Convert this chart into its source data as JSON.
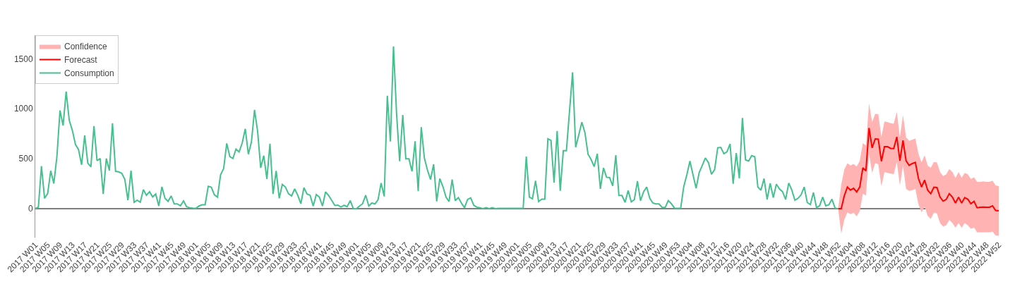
{
  "chart_data": {
    "type": "line",
    "categories": [
      "2017 W01",
      null,
      null,
      null,
      "2017 W05",
      null,
      null,
      null,
      "2017 W09",
      null,
      null,
      null,
      "2017 W13",
      null,
      null,
      null,
      "2017 W17",
      null,
      null,
      null,
      "2017 W21",
      null,
      null,
      null,
      "2017 W25",
      null,
      null,
      null,
      "2017 W29",
      null,
      null,
      null,
      "2017 W33",
      null,
      null,
      null,
      "2017 W37",
      null,
      null,
      null,
      "2017 W41",
      null,
      null,
      null,
      "2017 W45",
      null,
      null,
      null,
      "2017 W49",
      null,
      null,
      null,
      "2018 W01",
      null,
      null,
      null,
      "2018 W05",
      null,
      null,
      null,
      "2018 W09",
      null,
      null,
      null,
      "2018 W13",
      null,
      null,
      null,
      "2018 W17",
      null,
      null,
      null,
      "2018 W21",
      null,
      null,
      null,
      "2018 W25",
      null,
      null,
      null,
      "2018 W29",
      null,
      null,
      null,
      "2018 W33",
      null,
      null,
      null,
      "2018 W37",
      null,
      null,
      null,
      "2018 W41",
      null,
      null,
      null,
      "2018 W45",
      null,
      null,
      null,
      "2018 W49",
      null,
      null,
      null,
      "2019 W01",
      null,
      null,
      null,
      "2019 W05",
      null,
      null,
      null,
      "2019 W09",
      null,
      null,
      null,
      "2019 W13",
      null,
      null,
      null,
      "2019 W17",
      null,
      null,
      null,
      "2019 W21",
      null,
      null,
      null,
      "2019 W25",
      null,
      null,
      null,
      "2019 W29",
      null,
      null,
      null,
      "2019 W33",
      null,
      null,
      null,
      "2019 W37",
      null,
      null,
      null,
      "2019 W41",
      null,
      null,
      null,
      "2019 W45",
      null,
      null,
      null,
      "2019 W49",
      null,
      null,
      null,
      "2020 W01",
      null,
      null,
      null,
      "2020 W05",
      null,
      null,
      null,
      "2020 W09",
      null,
      null,
      null,
      "2020 W13",
      null,
      null,
      null,
      "2020 W17",
      null,
      null,
      null,
      "2020 W21",
      null,
      null,
      null,
      "2020 W25",
      null,
      null,
      null,
      "2020 W29",
      null,
      null,
      null,
      "2020 W33",
      null,
      null,
      null,
      "2020 W37",
      null,
      null,
      null,
      "2020 W41",
      null,
      null,
      null,
      "2020 W45",
      null,
      null,
      null,
      "2020 W49",
      null,
      null,
      null,
      "2020 W53",
      null,
      null,
      null,
      "2021 W04",
      null,
      null,
      null,
      "2021 W08",
      null,
      null,
      null,
      "2021 W12",
      null,
      null,
      null,
      "2021 W16",
      null,
      null,
      null,
      "2021 W20",
      null,
      null,
      null,
      "2021 W24",
      null,
      null,
      null,
      "2021 W28",
      null,
      null,
      null,
      "2021 W32",
      null,
      null,
      null,
      "2021 W36",
      null,
      null,
      null,
      "2021 W40",
      null,
      null,
      null,
      "2021 W44",
      null,
      null,
      null,
      "2021 W48",
      null,
      null,
      null,
      "2021 W52",
      null,
      null,
      null,
      "2022 W04",
      null,
      null,
      null,
      "2022 W08",
      null,
      null,
      null,
      "2022 W12",
      null,
      null,
      null,
      "2022 W16",
      null,
      null,
      null,
      "2022 W20",
      null,
      null,
      null,
      "2022 W24",
      null,
      null,
      null,
      "2022 W28",
      null,
      null,
      null,
      "2022 W32",
      null,
      null,
      null,
      "2022 W36",
      null,
      null,
      null,
      "2022 W40",
      null,
      null,
      null,
      "2022 W44",
      null,
      null,
      null,
      "2022 W48",
      null,
      null,
      null,
      "2022 W52"
    ],
    "series": [
      {
        "name": "Confidence",
        "type": "area",
        "color": "#ffb3b3",
        "values": [
          null,
          null,
          null,
          null,
          null,
          null,
          null,
          null,
          null,
          null,
          null,
          null,
          null,
          null,
          null,
          null,
          null,
          null,
          null,
          null,
          null,
          null,
          null,
          null,
          null,
          null,
          null,
          null,
          null,
          null,
          null,
          null,
          null,
          null,
          null,
          null,
          null,
          null,
          null,
          null,
          null,
          null,
          null,
          null,
          null,
          null,
          null,
          null,
          null,
          null,
          null,
          null,
          null,
          null,
          null,
          null,
          null,
          null,
          null,
          null,
          null,
          null,
          null,
          null,
          null,
          null,
          null,
          null,
          null,
          null,
          null,
          null,
          null,
          null,
          null,
          null,
          null,
          null,
          null,
          null,
          null,
          null,
          null,
          null,
          null,
          null,
          null,
          null,
          null,
          null,
          null,
          null,
          null,
          null,
          null,
          null,
          null,
          null,
          null,
          null,
          null,
          null,
          null,
          null,
          null,
          null,
          null,
          null,
          null,
          null,
          null,
          null,
          null,
          null,
          null,
          null,
          null,
          null,
          null,
          null,
          null,
          null,
          null,
          null,
          null,
          null,
          null,
          null,
          null,
          null,
          null,
          null,
          null,
          null,
          null,
          null,
          null,
          null,
          null,
          null,
          null,
          null,
          null,
          null,
          null,
          null,
          null,
          null,
          null,
          null,
          null,
          null,
          null,
          null,
          null,
          null,
          null,
          null,
          null,
          null,
          null,
          null,
          null,
          null,
          null,
          null,
          null,
          null,
          null,
          null,
          null,
          null,
          null,
          null,
          null,
          null,
          null,
          null,
          null,
          null,
          null,
          null,
          null,
          null,
          null,
          null,
          null,
          null,
          null,
          null,
          null,
          null,
          null,
          null,
          null,
          null,
          null,
          null,
          null,
          null,
          null,
          null,
          null,
          null,
          null,
          null,
          null,
          null,
          null,
          null,
          null,
          null,
          null,
          null,
          null,
          null,
          null,
          null,
          null,
          null,
          null,
          null,
          null,
          null,
          null,
          null,
          null,
          null,
          null,
          null,
          null,
          null,
          null,
          null,
          null,
          null,
          null,
          null,
          null,
          null,
          null,
          null,
          null,
          null,
          null,
          null,
          null,
          null,
          null,
          null,
          null,
          null,
          null,
          null,
          null,
          null,
          null,
          null,
          null,
          null,
          null,
          null,
          null,
          null,
          null,
          null,
          null,
          null,
          null,
          null,
          null,
          null,
          null,
          null,
          null,
          null,
          null,
          null,
          null,
          null,
          null,
          null,
          null,
          null,
          null,
          null,
          null,
          null,
          null,
          null,
          null,
          null,
          null,
          null,
          null,
          null,
          null,
          null,
          null,
          null,
          null,
          null,
          null,
          null,
          null,
          null,
          null,
          null,
          null,
          null,
          null,
          null,
          null
        ],
        "lower": [
          null,
          null,
          null,
          null,
          null,
          null,
          null,
          null,
          null,
          null,
          null,
          null,
          null,
          null,
          null,
          null,
          null,
          null,
          null,
          null,
          null,
          null,
          null,
          null,
          null,
          null,
          null,
          null,
          null,
          null,
          null,
          null,
          null,
          null,
          null,
          null,
          null,
          null,
          null,
          null,
          null,
          null,
          null,
          null,
          null,
          null,
          null,
          null,
          null,
          null,
          null,
          null,
          null,
          null,
          null,
          null,
          null,
          null,
          null,
          null,
          null,
          null,
          null,
          null,
          null,
          null,
          null,
          null,
          null,
          null,
          null,
          null,
          null,
          null,
          null,
          null,
          null,
          null,
          null,
          null,
          null,
          null,
          null,
          null,
          null,
          null,
          null,
          null,
          null,
          null,
          null,
          null,
          null,
          null,
          null,
          null,
          null,
          null,
          null,
          null,
          null,
          null,
          null,
          null,
          null,
          null,
          null,
          null,
          null,
          null,
          null,
          null,
          null,
          null,
          null,
          null,
          null,
          null,
          null,
          null,
          null,
          null,
          null,
          null,
          null,
          null,
          null,
          null,
          null,
          null,
          null,
          null,
          null,
          null,
          null,
          null,
          null,
          null,
          null,
          null,
          null,
          null,
          null,
          null,
          null,
          null,
          null,
          null,
          null,
          null,
          null,
          null,
          null,
          null,
          null,
          null,
          null,
          null,
          null,
          null,
          null,
          null,
          null,
          null,
          null,
          null,
          null,
          null,
          null,
          null,
          null,
          null,
          null,
          null,
          null,
          null,
          null,
          null,
          null,
          null,
          null,
          null,
          null,
          null,
          null,
          null,
          null,
          null,
          null,
          null,
          null,
          null,
          null,
          null,
          null,
          null,
          null,
          null,
          null,
          null,
          null,
          null,
          null,
          null,
          null,
          null,
          null,
          null,
          null,
          null,
          null,
          null,
          null,
          null,
          null,
          null,
          null,
          null,
          null,
          null,
          null,
          null,
          null,
          null,
          null,
          null,
          null,
          null,
          null,
          null,
          null,
          null,
          null,
          null,
          null,
          null,
          null,
          null,
          null,
          null,
          null,
          null,
          null,
          null,
          null,
          null,
          null,
          null,
          null,
          null,
          null,
          null,
          null,
          null,
          null,
          null,
          null,
          null,
          null,
          null,
          0,
          -249,
          -110,
          -38,
          -56,
          -42,
          -77,
          -26,
          150,
          131,
          549,
          357,
          455,
          444,
          225,
          366,
          357,
          350,
          345,
          467,
          232,
          432,
          197,
          178,
          185,
          197,
          45,
          -38,
          21,
          -73,
          -103,
          -42,
          -49,
          -143,
          -178,
          -167,
          -113,
          -143,
          -192,
          -143,
          -192,
          -143,
          -167,
          -202,
          -190,
          -237,
          -237,
          -237,
          -237,
          -237,
          -230,
          -268,
          -272
        ],
        "upper": [
          null,
          null,
          null,
          null,
          null,
          null,
          null,
          null,
          null,
          null,
          null,
          null,
          null,
          null,
          null,
          null,
          null,
          null,
          null,
          null,
          null,
          null,
          null,
          null,
          null,
          null,
          null,
          null,
          null,
          null,
          null,
          null,
          null,
          null,
          null,
          null,
          null,
          null,
          null,
          null,
          null,
          null,
          null,
          null,
          null,
          null,
          null,
          null,
          null,
          null,
          null,
          null,
          null,
          null,
          null,
          null,
          null,
          null,
          null,
          null,
          null,
          null,
          null,
          null,
          null,
          null,
          null,
          null,
          null,
          null,
          null,
          null,
          null,
          null,
          null,
          null,
          null,
          null,
          null,
          null,
          null,
          null,
          null,
          null,
          null,
          null,
          null,
          null,
          null,
          null,
          null,
          null,
          null,
          null,
          null,
          null,
          null,
          null,
          null,
          null,
          null,
          null,
          null,
          null,
          null,
          null,
          null,
          null,
          null,
          null,
          null,
          null,
          null,
          null,
          null,
          null,
          null,
          null,
          null,
          null,
          null,
          null,
          null,
          null,
          null,
          null,
          null,
          null,
          null,
          null,
          null,
          null,
          null,
          null,
          null,
          null,
          null,
          null,
          null,
          null,
          null,
          null,
          null,
          null,
          null,
          null,
          null,
          null,
          null,
          null,
          null,
          null,
          null,
          null,
          null,
          null,
          null,
          null,
          null,
          null,
          null,
          null,
          null,
          null,
          null,
          null,
          null,
          null,
          null,
          null,
          null,
          null,
          null,
          null,
          null,
          null,
          null,
          null,
          null,
          null,
          null,
          null,
          null,
          null,
          null,
          null,
          null,
          null,
          null,
          null,
          null,
          null,
          null,
          null,
          null,
          null,
          null,
          null,
          null,
          null,
          null,
          null,
          null,
          null,
          null,
          null,
          null,
          null,
          null,
          null,
          null,
          null,
          null,
          null,
          null,
          null,
          null,
          null,
          null,
          null,
          null,
          null,
          null,
          null,
          null,
          null,
          null,
          null,
          null,
          null,
          null,
          null,
          null,
          null,
          null,
          null,
          null,
          null,
          null,
          null,
          null,
          null,
          null,
          null,
          null,
          null,
          null,
          null,
          null,
          null,
          null,
          null,
          null,
          null,
          null,
          null,
          null,
          null,
          null,
          null,
          0,
          240,
          390,
          455,
          432,
          448,
          420,
          479,
          655,
          631,
          1054,
          866,
          948,
          944,
          718,
          873,
          866,
          854,
          850,
          967,
          713,
          936,
          713,
          678,
          690,
          702,
          549,
          462,
          533,
          432,
          408,
          467,
          462,
          366,
          326,
          343,
          397,
          366,
          307,
          366,
          310,
          357,
          343,
          296,
          314,
          268,
          268,
          272,
          268,
          268,
          279,
          232,
          225
        ]
      },
      {
        "name": "Forecast",
        "color": "#ff0000",
        "values": [
          null,
          null,
          null,
          null,
          null,
          null,
          null,
          null,
          null,
          null,
          null,
          null,
          null,
          null,
          null,
          null,
          null,
          null,
          null,
          null,
          null,
          null,
          null,
          null,
          null,
          null,
          null,
          null,
          null,
          null,
          null,
          null,
          null,
          null,
          null,
          null,
          null,
          null,
          null,
          null,
          null,
          null,
          null,
          null,
          null,
          null,
          null,
          null,
          null,
          null,
          null,
          null,
          null,
          null,
          null,
          null,
          null,
          null,
          null,
          null,
          null,
          null,
          null,
          null,
          null,
          null,
          null,
          null,
          null,
          null,
          null,
          null,
          null,
          null,
          null,
          null,
          null,
          null,
          null,
          null,
          null,
          null,
          null,
          null,
          null,
          null,
          null,
          null,
          null,
          null,
          null,
          null,
          null,
          null,
          null,
          null,
          null,
          null,
          null,
          null,
          null,
          null,
          null,
          null,
          null,
          null,
          null,
          null,
          null,
          null,
          null,
          null,
          null,
          null,
          null,
          null,
          null,
          null,
          null,
          null,
          null,
          null,
          null,
          null,
          null,
          null,
          null,
          null,
          null,
          null,
          null,
          null,
          null,
          null,
          null,
          null,
          null,
          null,
          null,
          null,
          null,
          null,
          null,
          null,
          null,
          null,
          null,
          null,
          null,
          null,
          null,
          null,
          null,
          null,
          null,
          null,
          null,
          null,
          null,
          null,
          null,
          null,
          null,
          null,
          null,
          null,
          null,
          null,
          null,
          null,
          null,
          null,
          null,
          null,
          null,
          null,
          null,
          null,
          null,
          null,
          null,
          null,
          null,
          null,
          null,
          null,
          null,
          null,
          null,
          null,
          null,
          null,
          null,
          null,
          null,
          null,
          null,
          null,
          null,
          null,
          null,
          null,
          null,
          null,
          null,
          null,
          null,
          null,
          null,
          null,
          null,
          null,
          null,
          null,
          null,
          null,
          null,
          null,
          null,
          null,
          null,
          null,
          null,
          null,
          null,
          null,
          null,
          null,
          null,
          null,
          null,
          null,
          null,
          null,
          null,
          null,
          null,
          null,
          null,
          null,
          null,
          null,
          null,
          null,
          null,
          null,
          null,
          null,
          null,
          null,
          null,
          null,
          null,
          null,
          null,
          null,
          null,
          null,
          null,
          null,
          0,
          0,
          130,
          216,
          185,
          204,
          167,
          216,
          408,
          378,
          807,
          608,
          697,
          695,
          474,
          620,
          620,
          603,
          601,
          718,
          479,
          683,
          479,
          432,
          451,
          462,
          303,
          216,
          286,
          185,
          150,
          214,
          211,
          115,
          75,
          92,
          150,
          115,
          56,
          115,
          56,
          110,
          94,
          49,
          73,
          9,
          14,
          16,
          14,
          14,
          28,
          -19,
          -21
        ]
      },
      {
        "name": "Consumption",
        "color": "#47c08f",
        "values": [
          0,
          15,
          425,
          103,
          150,
          378,
          251,
          520,
          983,
          831,
          1171,
          882,
          784,
          643,
          591,
          439,
          732,
          455,
          418,
          826,
          479,
          502,
          146,
          502,
          380,
          854,
          373,
          368,
          354,
          291,
          84,
          380,
          63,
          84,
          63,
          190,
          134,
          169,
          117,
          146,
          26,
          218,
          103,
          73,
          127,
          47,
          47,
          28,
          77,
          19,
          9,
          5,
          2,
          26,
          38,
          38,
          223,
          214,
          138,
          115,
          338,
          401,
          652,
          521,
          502,
          596,
          568,
          655,
          798,
          545,
          667,
          988,
          772,
          408,
          530,
          296,
          650,
          146,
          378,
          103,
          242,
          216,
          148,
          127,
          197,
          134,
          49,
          209,
          146,
          134,
          26,
          141,
          115,
          26,
          167,
          131,
          82,
          31,
          35,
          16,
          33,
          19,
          80,
          0,
          0,
          26,
          49,
          134,
          26,
          56,
          47,
          89,
          256,
          122,
          1129,
          671,
          1624,
          948,
          474,
          937,
          498,
          498,
          373,
          674,
          174,
          815,
          507,
          385,
          291,
          444,
          73,
          300,
          221,
          115,
          70,
          291,
          80,
          110,
          56,
          9,
          92,
          108,
          33,
          14,
          9,
          0,
          9,
          0,
          9,
          0,
          2,
          2,
          2,
          2,
          2,
          2,
          2,
          2,
          2,
          521,
          115,
          99,
          279,
          70,
          94,
          94,
          699,
          683,
          261,
          777,
          178,
          580,
          580,
          972,
          1364,
          615,
          737,
          866,
          760,
          545,
          491,
          420,
          549,
          197,
          408,
          314,
          310,
          228,
          535,
          131,
          131,
          63,
          181,
          68,
          89,
          275,
          80,
          169,
          216,
          103,
          56,
          47,
          47,
          12,
          12,
          80,
          49,
          5,
          2,
          2,
          220,
          338,
          476,
          338,
          204,
          361,
          432,
          507,
          460,
          343,
          390,
          608,
          613,
          549,
          568,
          648,
          249,
          556,
          303,
          908,
          488,
          476,
          530,
          519,
          216,
          185,
          300,
          92,
          253,
          110,
          244,
          197,
          169,
          92,
          256,
          185,
          84,
          103,
          138,
          216,
          61,
          40,
          162,
          9,
          28,
          115,
          28,
          38,
          94,
          5,
          0,
          null,
          null,
          null,
          null,
          null,
          null,
          null,
          null,
          null,
          null,
          null,
          null,
          null,
          null,
          null,
          null,
          null,
          null,
          null,
          null,
          null,
          null,
          null,
          null,
          null,
          null,
          null,
          null,
          null,
          null,
          null,
          null,
          null,
          null,
          null,
          null,
          null,
          null,
          null,
          null,
          null,
          null,
          null,
          null,
          null,
          null,
          null,
          null,
          null,
          null,
          null,
          null
        ]
      }
    ],
    "ylim": [
      -290,
      1735
    ],
    "yticks": [
      0,
      500,
      1000,
      1500
    ],
    "grid": false,
    "legend": "top left",
    "ref_lines": [
      {
        "axis": "y",
        "value": 0,
        "color": "#7f7f7f"
      }
    ]
  }
}
